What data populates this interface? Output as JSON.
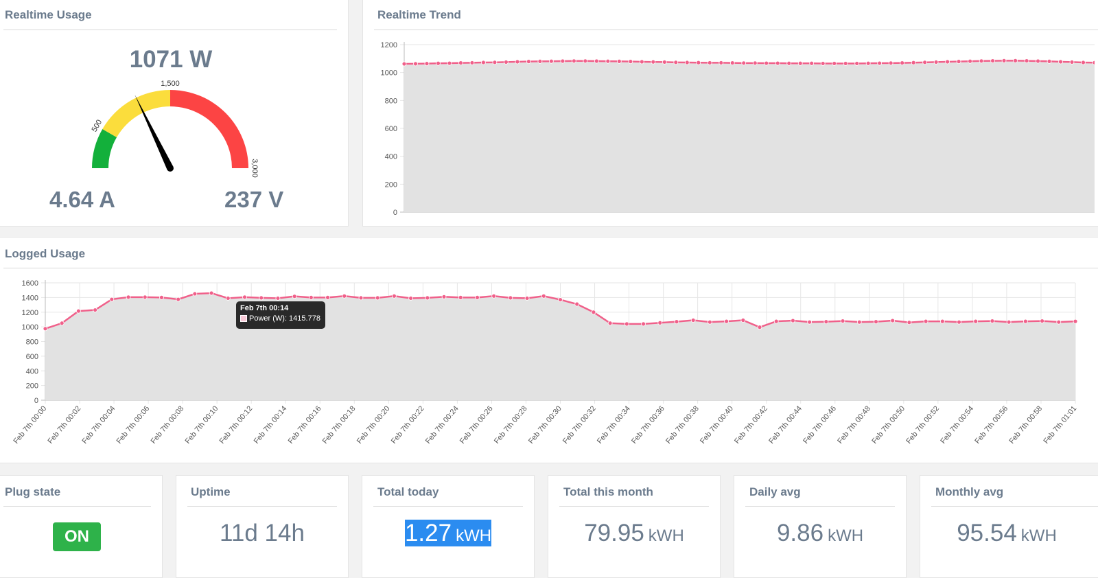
{
  "realtime_usage": {
    "title": "Realtime Usage",
    "power": "1071 W",
    "current": "4.64 A",
    "voltage": "237 V",
    "gauge": {
      "value": 1071,
      "min": 0,
      "max": 3000,
      "tick_labels": [
        "500",
        "1,500",
        "3,000"
      ],
      "bands": [
        {
          "from": 0,
          "to": 500,
          "color": "#13b03b"
        },
        {
          "from": 500,
          "to": 1500,
          "color": "#fbdd3c"
        },
        {
          "from": 1500,
          "to": 3000,
          "color": "#fc4444"
        }
      ]
    }
  },
  "realtime_trend": {
    "title": "Realtime Trend"
  },
  "logged_usage": {
    "title": "Logged Usage",
    "tooltip": {
      "title": "Feb 7th 00:14",
      "label": "Power (W): 1415.778"
    }
  },
  "tiles": {
    "plug_state": {
      "title": "Plug state",
      "value": "ON"
    },
    "uptime": {
      "title": "Uptime",
      "value": "11d 14h"
    },
    "total_today": {
      "title": "Total today",
      "value": "1.27",
      "unit": "kWH"
    },
    "total_month": {
      "title": "Total this month",
      "value": "79.95",
      "unit": "kWH"
    },
    "daily_avg": {
      "title": "Daily avg",
      "value": "9.86",
      "unit": "kWH"
    },
    "monthly_avg": {
      "title": "Monthly avg",
      "value": "95.54",
      "unit": "kWH"
    }
  },
  "chart_data": [
    {
      "type": "area",
      "title": "",
      "color": "#f0608a",
      "fill": "#e2e2e2",
      "ylim": [
        0,
        1200
      ],
      "y_ticks": [
        0,
        200,
        400,
        600,
        800,
        1000,
        1200
      ],
      "series": [
        {
          "values": [
            1062,
            1063,
            1064,
            1066,
            1067,
            1069,
            1070,
            1072,
            1073,
            1075,
            1077,
            1079,
            1080,
            1081,
            1082,
            1083,
            1083,
            1082,
            1081,
            1080,
            1079,
            1077,
            1076,
            1075,
            1073,
            1072,
            1071,
            1070,
            1070,
            1069,
            1068,
            1068,
            1067,
            1067,
            1066,
            1066,
            1066,
            1065,
            1065,
            1065,
            1065,
            1066,
            1067,
            1068,
            1069,
            1071,
            1073,
            1075,
            1077,
            1079,
            1081,
            1083,
            1084,
            1085,
            1085,
            1084,
            1082,
            1080,
            1077,
            1075,
            1072,
            1071
          ]
        }
      ]
    },
    {
      "type": "area",
      "title": "",
      "color": "#f0608a",
      "fill": "#e2e2e2",
      "ylim": [
        0,
        1600
      ],
      "y_ticks": [
        0,
        200,
        400,
        600,
        800,
        1000,
        1200,
        1400,
        1600
      ],
      "x_ticks": [
        "Feb 7th 00:00",
        "Feb 7th 00:02",
        "Feb 7th 00:04",
        "Feb 7th 00:06",
        "Feb 7th 00:08",
        "Feb 7th 00:10",
        "Feb 7th 00:12",
        "Feb 7th 00:14",
        "Feb 7th 00:16",
        "Feb 7th 00:18",
        "Feb 7th 00:20",
        "Feb 7th 00:22",
        "Feb 7th 00:24",
        "Feb 7th 00:26",
        "Feb 7th 00:28",
        "Feb 7th 00:30",
        "Feb 7th 00:32",
        "Feb 7th 00:34",
        "Feb 7th 00:36",
        "Feb 7th 00:38",
        "Feb 7th 00:40",
        "Feb 7th 00:42",
        "Feb 7th 00:44",
        "Feb 7th 00:46",
        "Feb 7th 00:48",
        "Feb 7th 00:50",
        "Feb 7th 00:52",
        "Feb 7th 00:54",
        "Feb 7th 00:56",
        "Feb 7th 00:58",
        "Feb 7th 01:01"
      ],
      "series": [
        {
          "name": "Power (W)",
          "values": [
            975,
            1050,
            1215,
            1230,
            1375,
            1405,
            1405,
            1400,
            1375,
            1450,
            1460,
            1390,
            1405,
            1395,
            1390,
            1415.778,
            1400,
            1400,
            1420,
            1395,
            1395,
            1420,
            1390,
            1395,
            1410,
            1400,
            1400,
            1420,
            1395,
            1390,
            1420,
            1370,
            1310,
            1200,
            1050,
            1040,
            1040,
            1055,
            1070,
            1090,
            1065,
            1075,
            1090,
            995,
            1075,
            1085,
            1065,
            1070,
            1080,
            1065,
            1070,
            1085,
            1060,
            1075,
            1075,
            1065,
            1075,
            1080,
            1065,
            1075,
            1080,
            1065,
            1075
          ]
        }
      ]
    }
  ]
}
